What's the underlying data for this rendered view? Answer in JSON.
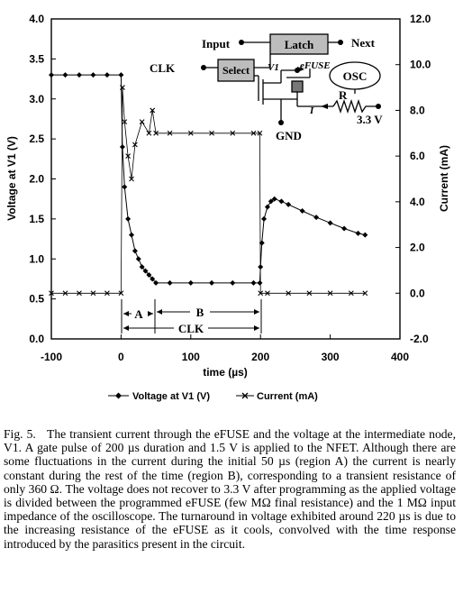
{
  "chart_data": {
    "type": "line",
    "title": "",
    "xlabel": "time (µs)",
    "ylabel_left": "Voltage at V1 (V)",
    "ylabel_right": "Current (mA)",
    "xlim": [
      -100,
      400
    ],
    "ylim_left": [
      0,
      4
    ],
    "ylim_right": [
      -2,
      12
    ],
    "x_ticks": [
      "-100",
      "0",
      "100",
      "200",
      "300",
      "400"
    ],
    "y_ticks_left": [
      "0.0",
      "0.5",
      "1.0",
      "1.5",
      "2.0",
      "2.5",
      "3.0",
      "3.5",
      "4.0"
    ],
    "y_ticks_right": [
      "-2.0",
      "0.0",
      "2.0",
      "4.0",
      "6.0",
      "8.0",
      "10.0",
      "12.0"
    ],
    "legend_position": "bottom",
    "series": [
      {
        "name": "Voltage at V1 (V)",
        "axis": "left",
        "marker": "diamond",
        "x": [
          -100,
          -80,
          -60,
          -40,
          -20,
          0,
          2,
          5,
          10,
          15,
          20,
          25,
          30,
          35,
          40,
          45,
          50,
          70,
          100,
          130,
          160,
          190,
          199,
          200,
          202,
          205,
          210,
          215,
          220,
          230,
          240,
          260,
          280,
          300,
          320,
          340,
          350
        ],
        "y": [
          3.3,
          3.3,
          3.3,
          3.3,
          3.3,
          3.3,
          2.4,
          1.9,
          1.5,
          1.3,
          1.1,
          1.0,
          0.9,
          0.85,
          0.8,
          0.75,
          0.7,
          0.7,
          0.7,
          0.7,
          0.7,
          0.7,
          0.7,
          0.9,
          1.2,
          1.5,
          1.65,
          1.72,
          1.75,
          1.72,
          1.68,
          1.6,
          1.52,
          1.45,
          1.38,
          1.32,
          1.3
        ]
      },
      {
        "name": "Current (mA)",
        "axis": "right",
        "marker": "x",
        "x": [
          -100,
          -80,
          -60,
          -40,
          -20,
          0,
          2,
          5,
          10,
          15,
          20,
          30,
          40,
          45,
          50,
          70,
          100,
          130,
          160,
          190,
          199,
          200,
          210,
          240,
          270,
          300,
          330,
          350
        ],
        "y": [
          0.0,
          0.0,
          0.0,
          0.0,
          0.0,
          0.0,
          9.0,
          7.5,
          6.0,
          5.0,
          6.5,
          7.5,
          7.0,
          8.0,
          7.0,
          7.0,
          7.0,
          7.0,
          7.0,
          7.0,
          7.0,
          0.0,
          0.0,
          0.0,
          0.0,
          0.0,
          0.0,
          0.0
        ]
      }
    ],
    "annotations": {
      "clk": "CLK",
      "region_a": "A",
      "region_b": "B",
      "region_clk": "CLK",
      "circuit": {
        "input": "Input",
        "latch": "Latch",
        "next": "Next",
        "select": "Select",
        "v1": "V1",
        "efuse": "eFUSE",
        "osc": "OSC",
        "r": "R",
        "i": "I",
        "supply": "3.3 V",
        "gnd": "GND"
      }
    }
  },
  "caption": {
    "label": "Fig. 5.",
    "text": "The transient current through the eFUSE and the voltage at the intermediate node, V1. A gate pulse of 200 µs duration and 1.5 V is applied to the NFET. Although there are some fluctuations in the current during the initial 50 µs (region A) the current is nearly constant during the rest of the time (region B), corresponding to a transient resistance of only 360 Ω. The voltage does not recover to 3.3 V after programming as the applied voltage is divided between the programmed eFUSE (few MΩ final resistance) and the 1 MΩ input impedance of the oscilloscope. The turnaround in voltage exhibited around 220 µs is due to the increasing resistance of the eFUSE as it cools, convolved with the time response introduced by the parasitics present in the circuit."
  }
}
